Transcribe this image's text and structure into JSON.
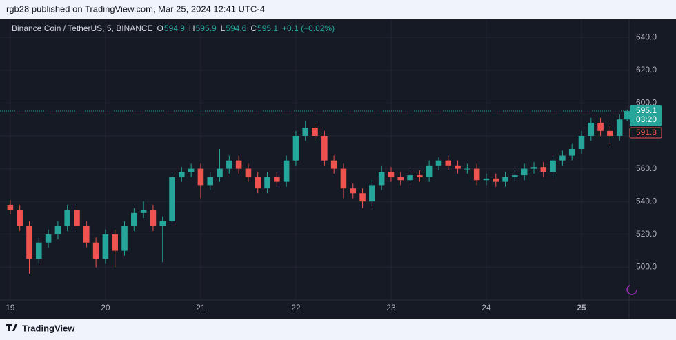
{
  "header": {
    "published": "rgb28 published on TradingView.com, Mar 25, 2024 12:41 UTC-4"
  },
  "chart_data": {
    "type": "candlestick",
    "symbol": "Binance Coin / TetherUS, 5, BINANCE",
    "legend_fields": [
      {
        "label": "O",
        "value": "594.9"
      },
      {
        "label": "H",
        "value": "595.9"
      },
      {
        "label": "L",
        "value": "594.6"
      },
      {
        "label": "C",
        "value": "595.1"
      }
    ],
    "change": "+0.1 (+0.02%)",
    "up_color": "#26a69a",
    "down_color": "#ef5350",
    "x": [
      19.0,
      19.1,
      19.2,
      19.3,
      19.4,
      19.5,
      19.6,
      19.7,
      19.8,
      19.9,
      20.0,
      20.1,
      20.2,
      20.3,
      20.4,
      20.5,
      20.6,
      20.7,
      20.8,
      20.9,
      21.0,
      21.1,
      21.2,
      21.3,
      21.4,
      21.5,
      21.6,
      21.7,
      21.8,
      21.9,
      22.0,
      22.1,
      22.2,
      22.3,
      22.4,
      22.5,
      22.6,
      22.7,
      22.8,
      22.9,
      23.0,
      23.1,
      23.2,
      23.3,
      23.4,
      23.5,
      23.6,
      23.7,
      23.8,
      23.9,
      24.0,
      24.1,
      24.2,
      24.3,
      24.4,
      24.5,
      24.6,
      24.7,
      24.8,
      24.9,
      25.0,
      25.1,
      25.2,
      25.3,
      25.4,
      25.48
    ],
    "open": [
      538,
      535,
      525,
      505,
      515,
      520,
      525,
      535,
      525,
      515,
      505,
      520,
      510,
      525,
      533,
      535,
      525,
      528,
      555,
      558,
      560,
      550,
      555,
      560,
      565,
      560,
      555,
      548,
      555,
      552,
      565,
      580,
      585,
      580,
      565,
      560,
      548,
      545,
      540,
      550,
      558,
      555,
      553,
      556,
      555,
      562,
      565,
      562,
      560,
      560,
      553,
      554,
      552,
      555,
      556,
      560,
      561,
      558,
      565,
      568,
      572,
      580,
      588,
      583,
      580,
      590
    ],
    "high": [
      541,
      538,
      528,
      518,
      523,
      528,
      538,
      538,
      528,
      518,
      523,
      523,
      528,
      536,
      540,
      538,
      531,
      558,
      561,
      563,
      563,
      558,
      572,
      568,
      568,
      563,
      558,
      558,
      558,
      568,
      583,
      589,
      588,
      583,
      568,
      563,
      551,
      548,
      553,
      562,
      561,
      558,
      559,
      559,
      565,
      567,
      568,
      565,
      563,
      563,
      557,
      557,
      558,
      559,
      563,
      564,
      564,
      568,
      571,
      575,
      583,
      591,
      591,
      586,
      593,
      595.9
    ],
    "low": [
      532,
      522,
      496,
      502,
      512,
      517,
      522,
      522,
      512,
      500,
      502,
      500,
      507,
      522,
      530,
      522,
      503,
      525,
      552,
      555,
      542,
      547,
      552,
      557,
      557,
      552,
      545,
      545,
      549,
      549,
      562,
      577,
      577,
      562,
      557,
      542,
      542,
      536,
      537,
      547,
      552,
      550,
      550,
      552,
      552,
      559,
      559,
      557,
      557,
      550,
      550,
      549,
      549,
      552,
      553,
      557,
      555,
      555,
      562,
      565,
      569,
      577,
      580,
      575,
      577,
      589
    ],
    "close": [
      535,
      525,
      505,
      515,
      520,
      525,
      535,
      525,
      515,
      505,
      520,
      510,
      525,
      533,
      535,
      525,
      528,
      555,
      558,
      560,
      550,
      555,
      560,
      565,
      560,
      555,
      548,
      555,
      552,
      565,
      580,
      585,
      580,
      565,
      560,
      548,
      545,
      540,
      550,
      558,
      555,
      553,
      556,
      555,
      562,
      565,
      562,
      560,
      560,
      553,
      554,
      552,
      555,
      556,
      560,
      561,
      558,
      565,
      568,
      572,
      580,
      588,
      583,
      580,
      590,
      595.1
    ],
    "xlim": [
      18.95,
      25.5
    ],
    "ylim": [
      480,
      651
    ],
    "xticks": [
      19,
      20,
      21,
      22,
      23,
      24,
      25
    ],
    "yticks": [
      {
        "value": 500,
        "label": "500.0"
      },
      {
        "value": 520,
        "label": "520.0"
      },
      {
        "value": 540,
        "label": "540.0"
      },
      {
        "value": 560,
        "label": "560.0"
      },
      {
        "value": 580,
        "label": "580.0"
      },
      {
        "value": 600,
        "label": "600.0"
      },
      {
        "value": 620,
        "label": "620.0"
      },
      {
        "value": 640,
        "label": "640.0"
      }
    ],
    "grid": true,
    "last_price": 595.1,
    "countdown": "03:20",
    "marker_price": 591.8
  },
  "footer": {
    "brand": "TradingView"
  }
}
